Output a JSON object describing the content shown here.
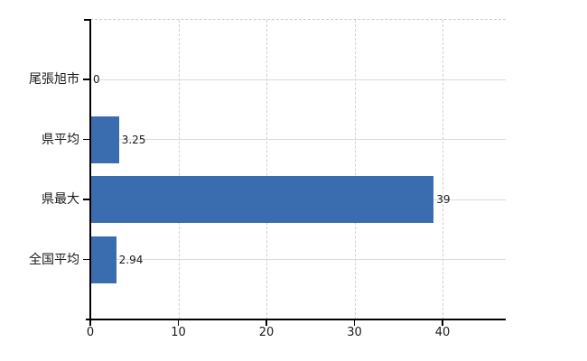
{
  "chart_data": {
    "type": "bar",
    "orientation": "horizontal",
    "title": "",
    "xlabel": "",
    "ylabel": "",
    "categories": [
      "尾張旭市",
      "県平均",
      "県最大",
      "全国平均"
    ],
    "values": [
      0,
      3.25,
      39,
      2.94
    ],
    "value_labels": [
      "0",
      "3.25",
      "39",
      "2.94"
    ],
    "x_ticks": [
      0,
      10,
      20,
      30,
      40
    ],
    "x_tick_labels": [
      "0",
      "10",
      "20",
      "30",
      "40"
    ],
    "xlim": [
      0,
      47.2
    ],
    "grid": true,
    "legend": false,
    "legend_position": "none",
    "bar_color": "#3a6cb0"
  },
  "colors": {
    "bar": "#3a6cb0",
    "axis": "#000000",
    "grid_vertical": "#d2cfcf",
    "grid_horizontal": "#d7ded7",
    "text": "#1a1a1a",
    "background": "#ffffff"
  }
}
